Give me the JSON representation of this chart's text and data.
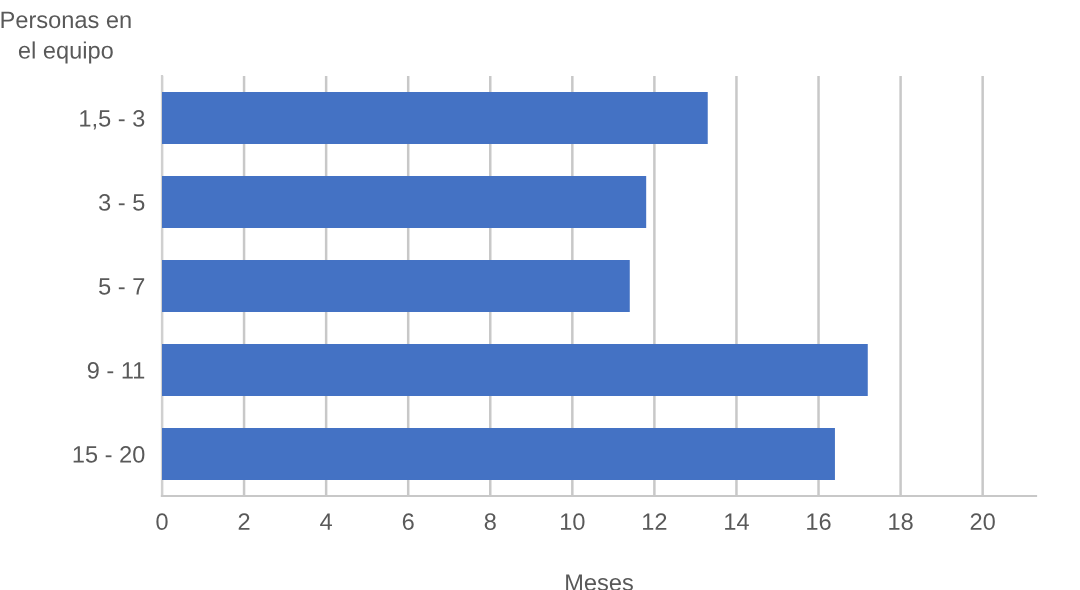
{
  "chart_data": {
    "type": "bar",
    "orientation": "horizontal",
    "ylabel": "Personas en\nel equipo",
    "xlabel": "Meses",
    "categories": [
      "1,5 - 3",
      "3 - 5",
      "5 - 7",
      "9 - 11",
      "15 - 20"
    ],
    "values": [
      13.3,
      11.8,
      11.4,
      17.2,
      16.4
    ],
    "color": "#4472c4",
    "xlim": [
      0,
      21.3
    ],
    "xticks": [
      0,
      2,
      4,
      6,
      8,
      10,
      12,
      14,
      16,
      18,
      20
    ],
    "grid": "x"
  }
}
